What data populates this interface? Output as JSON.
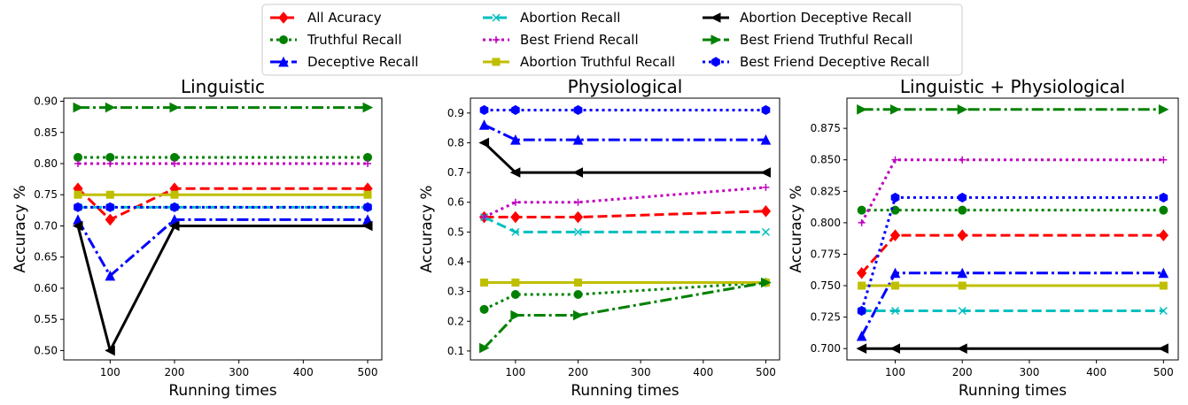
{
  "legend": {
    "placement": "top-center",
    "entries": [
      {
        "label": "All Acuracy",
        "color": "#ff0000",
        "dash": "dashed",
        "marker": "diamond"
      },
      {
        "label": "Truthful Recall",
        "color": "#008000",
        "dash": "dotted",
        "marker": "circle"
      },
      {
        "label": "Deceptive Recall",
        "color": "#0000ff",
        "dash": "dashdot",
        "marker": "triangle-up"
      },
      {
        "label": "Abortion Recall",
        "color": "#00bfbf",
        "dash": "dashed",
        "marker": "x"
      },
      {
        "label": "Best Friend Recall",
        "color": "#bf00bf",
        "dash": "dotted",
        "marker": "plus"
      },
      {
        "label": "Abortion Truthful Recall",
        "color": "#bfbf00",
        "dash": "solid",
        "marker": "square"
      },
      {
        "label": "Abortion Deceptive Recall",
        "color": "#000000",
        "dash": "solid",
        "marker": "triangle-left"
      },
      {
        "label": "Best Friend Truthful Recall",
        "color": "#008000",
        "dash": "dashdot",
        "marker": "triangle-right"
      },
      {
        "label": "Best Friend Deceptive Recall",
        "color": "#0000ff",
        "dash": "dotted",
        "marker": "hexagon"
      }
    ]
  },
  "chart_data": [
    {
      "type": "line",
      "title": "Linguistic",
      "xlabel": "Running times",
      "ylabel": "Accuracy %",
      "x": [
        50,
        100,
        200,
        500
      ],
      "xlim": [
        28,
        522
      ],
      "ylim": [
        0.485,
        0.905
      ],
      "xticks": [
        "100",
        "200",
        "300",
        "400",
        "500"
      ],
      "yticks": [
        "0.50",
        "0.55",
        "0.60",
        "0.65",
        "0.70",
        "0.75",
        "0.80",
        "0.85",
        "0.90"
      ],
      "grid": false,
      "series": [
        {
          "name": "All Acuracy",
          "values": [
            0.76,
            0.71,
            0.76,
            0.76
          ]
        },
        {
          "name": "Truthful Recall",
          "values": [
            0.81,
            0.81,
            0.81,
            0.81
          ]
        },
        {
          "name": "Deceptive Recall",
          "values": [
            0.71,
            0.62,
            0.71,
            0.71
          ]
        },
        {
          "name": "Abortion Recall",
          "values": [
            0.73,
            0.73,
            0.73,
            0.73
          ]
        },
        {
          "name": "Best Friend Recall",
          "values": [
            0.8,
            0.8,
            0.8,
            0.8
          ]
        },
        {
          "name": "Abortion Truthful Recall",
          "values": [
            0.75,
            0.75,
            0.75,
            0.75
          ]
        },
        {
          "name": "Abortion Deceptive Recall",
          "values": [
            0.7,
            0.5,
            0.7,
            0.7
          ]
        },
        {
          "name": "Best Friend Truthful Recall",
          "values": [
            0.89,
            0.89,
            0.89,
            0.89
          ]
        },
        {
          "name": "Best Friend Deceptive Recall",
          "values": [
            0.73,
            0.73,
            0.73,
            0.73
          ]
        }
      ]
    },
    {
      "type": "line",
      "title": "Physiological",
      "xlabel": "Running times",
      "ylabel": "Accuracy %",
      "x": [
        50,
        100,
        200,
        500
      ],
      "xlim": [
        28,
        522
      ],
      "ylim": [
        0.07,
        0.95
      ],
      "xticks": [
        "100",
        "200",
        "300",
        "400",
        "500"
      ],
      "yticks": [
        "0.1",
        "0.2",
        "0.3",
        "0.4",
        "0.5",
        "0.6",
        "0.7",
        "0.8",
        "0.9"
      ],
      "grid": false,
      "series": [
        {
          "name": "All Acuracy",
          "values": [
            0.55,
            0.55,
            0.55,
            0.57
          ]
        },
        {
          "name": "Truthful Recall",
          "values": [
            0.24,
            0.29,
            0.29,
            0.33
          ]
        },
        {
          "name": "Deceptive Recall",
          "values": [
            0.86,
            0.81,
            0.81,
            0.81
          ]
        },
        {
          "name": "Abortion Recall",
          "values": [
            0.55,
            0.5,
            0.5,
            0.5
          ]
        },
        {
          "name": "Best Friend Recall",
          "values": [
            0.55,
            0.6,
            0.6,
            0.65
          ]
        },
        {
          "name": "Abortion Truthful Recall",
          "values": [
            0.33,
            0.33,
            0.33,
            0.33
          ]
        },
        {
          "name": "Abortion Deceptive Recall",
          "values": [
            0.8,
            0.7,
            0.7,
            0.7
          ]
        },
        {
          "name": "Best Friend Truthful Recall",
          "values": [
            0.11,
            0.22,
            0.22,
            0.33
          ]
        },
        {
          "name": "Best Friend Deceptive Recall",
          "values": [
            0.91,
            0.91,
            0.91,
            0.91
          ]
        }
      ]
    },
    {
      "type": "line",
      "title": "Linguistic + Physiological",
      "xlabel": "Running times",
      "ylabel": "Accuracy %",
      "x": [
        50,
        100,
        200,
        500
      ],
      "xlim": [
        28,
        522
      ],
      "ylim": [
        0.691,
        0.899
      ],
      "xticks": [
        "100",
        "200",
        "300",
        "400",
        "500"
      ],
      "yticks": [
        "0.700",
        "0.725",
        "0.750",
        "0.775",
        "0.800",
        "0.825",
        "0.850",
        "0.875"
      ],
      "grid": false,
      "series": [
        {
          "name": "All Acuracy",
          "values": [
            0.76,
            0.79,
            0.79,
            0.79
          ]
        },
        {
          "name": "Truthful Recall",
          "values": [
            0.81,
            0.81,
            0.81,
            0.81
          ]
        },
        {
          "name": "Deceptive Recall",
          "values": [
            0.71,
            0.76,
            0.76,
            0.76
          ]
        },
        {
          "name": "Abortion Recall",
          "values": [
            0.73,
            0.73,
            0.73,
            0.73
          ]
        },
        {
          "name": "Best Friend Recall",
          "values": [
            0.8,
            0.85,
            0.85,
            0.85
          ]
        },
        {
          "name": "Abortion Truthful Recall",
          "values": [
            0.75,
            0.75,
            0.75,
            0.75
          ]
        },
        {
          "name": "Abortion Deceptive Recall",
          "values": [
            0.7,
            0.7,
            0.7,
            0.7
          ]
        },
        {
          "name": "Best Friend Truthful Recall",
          "values": [
            0.89,
            0.89,
            0.89,
            0.89
          ]
        },
        {
          "name": "Best Friend Deceptive Recall",
          "values": [
            0.73,
            0.82,
            0.82,
            0.82
          ]
        }
      ]
    }
  ]
}
